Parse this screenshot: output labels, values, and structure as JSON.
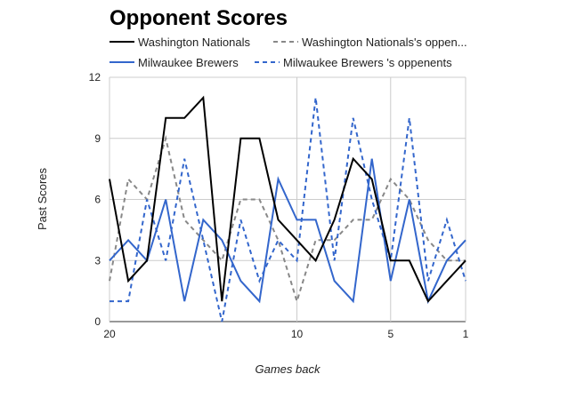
{
  "chart_data": {
    "type": "line",
    "title": "Opponent Scores",
    "xlabel": "Games back",
    "ylabel": "Past Scores",
    "x": [
      20,
      19,
      18,
      17,
      16,
      15,
      14,
      13,
      12,
      11,
      10,
      9,
      8,
      7,
      6,
      5,
      4,
      3,
      2,
      1
    ],
    "xlim": [
      20,
      1
    ],
    "ylim": [
      0,
      12
    ],
    "x_ticks": [
      20,
      10,
      5,
      1
    ],
    "y_ticks": [
      0,
      3,
      6,
      9,
      12
    ],
    "grid": true,
    "legend_position": "top",
    "series": [
      {
        "name": "Washington Nationals",
        "color": "#000000",
        "dash": "solid",
        "values": [
          7,
          2,
          3,
          10,
          10,
          11,
          1,
          9,
          9,
          5,
          4,
          3,
          5,
          8,
          7,
          3,
          3,
          1,
          2,
          3
        ]
      },
      {
        "name": "Washington Nationals's oppen...",
        "color": "#888888",
        "dash": "dashed",
        "values": [
          2,
          7,
          6,
          9,
          5,
          4,
          3,
          6,
          6,
          4,
          1,
          4,
          4,
          5,
          5,
          7,
          6,
          4,
          3,
          3
        ]
      },
      {
        "name": "Milwaukee Brewers",
        "color": "#3366cc",
        "dash": "solid",
        "values": [
          3,
          4,
          3,
          6,
          1,
          5,
          4,
          2,
          1,
          7,
          5,
          5,
          2,
          1,
          8,
          2,
          6,
          1,
          3,
          4
        ]
      },
      {
        "name": "Milwaukee Brewers 's oppenents",
        "color": "#3366cc",
        "dash": "dashed",
        "values": [
          1,
          1,
          6,
          3,
          8,
          4,
          0,
          5,
          2,
          4,
          3,
          11,
          3,
          10,
          6,
          3,
          10,
          2,
          5,
          2
        ]
      }
    ]
  }
}
